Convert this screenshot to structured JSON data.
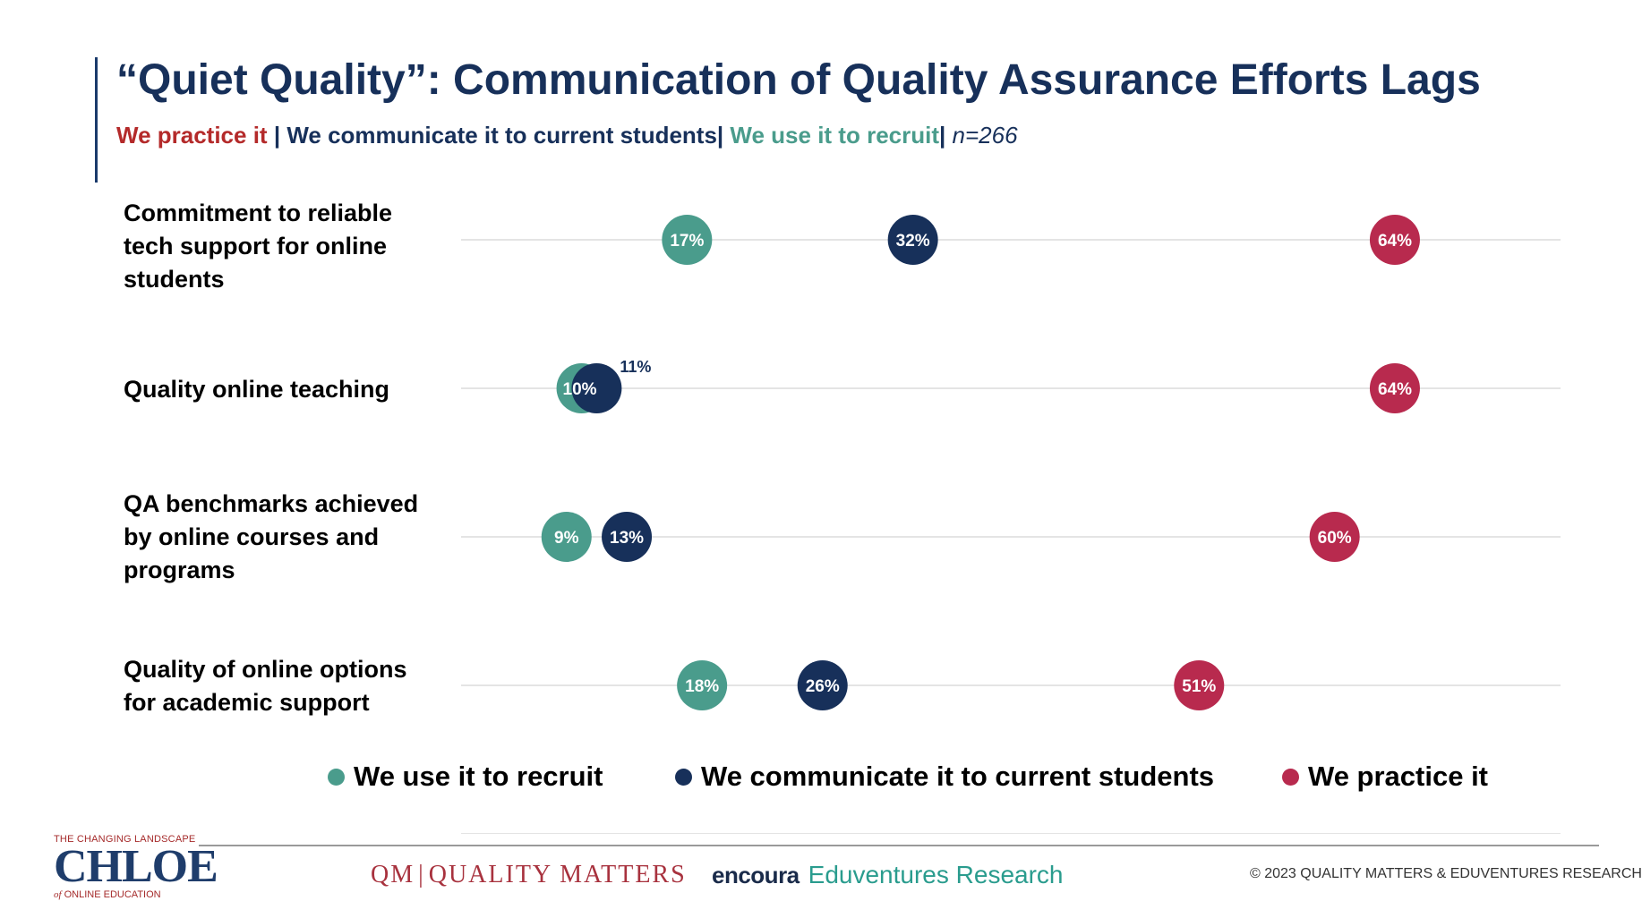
{
  "header": {
    "title": "“Quiet Quality”: Communication of Quality Assurance Efforts Lags",
    "subtitle_parts": {
      "practice": "We practice it",
      "sep1": " | ",
      "communicate": "We communicate it to current students",
      "sep2": "| ",
      "recruit": "We use it to recruit",
      "sep3": "| ",
      "n": "n=266"
    }
  },
  "colors": {
    "recruit": "#4a9c8c",
    "communicate": "#17305a",
    "practice": "#b82a4e",
    "gridline": "#dcdcdc"
  },
  "chart_data": {
    "type": "scatter",
    "subtype": "dot-plot",
    "title": "“Quiet Quality”: Communication of Quality Assurance Efforts Lags",
    "categories": [
      "Commitment to reliable tech support for online students",
      "Quality online teaching",
      "QA benchmarks achieved by online courses and programs",
      "Quality of online options for academic support"
    ],
    "series": [
      {
        "name": "We use it to recruit",
        "color": "#4a9c8c",
        "values": [
          17,
          10,
          9,
          18
        ],
        "labels": [
          "17%",
          "10%",
          "9%",
          "18%"
        ]
      },
      {
        "name": "We communicate it to current students",
        "color": "#17305a",
        "values": [
          32,
          11,
          13,
          26
        ],
        "labels": [
          "32%",
          "11%",
          "13%",
          "26%"
        ]
      },
      {
        "name": "We practice it",
        "color": "#b82a4e",
        "values": [
          64,
          64,
          60,
          51
        ],
        "labels": [
          "64%",
          "64%",
          "60%",
          "51%"
        ]
      }
    ],
    "xlim": [
      2,
      75
    ],
    "grid": true,
    "legend_position": "bottom"
  },
  "footer": {
    "chloe_top": "THE CHANGING LANDSCAPE",
    "chloe_main": "CHLOE",
    "chloe_bottom_of": "of",
    "chloe_bottom_rest": " ONLINE EDUCATION",
    "qm_mark": "QM",
    "qm_text": "QUALITY MATTERS",
    "encoura": "encoura",
    "eduventures": "Eduventures Research",
    "copyright": "© 2023 QUALITY MATTERS & EDUVENTURES RESEARCH"
  }
}
